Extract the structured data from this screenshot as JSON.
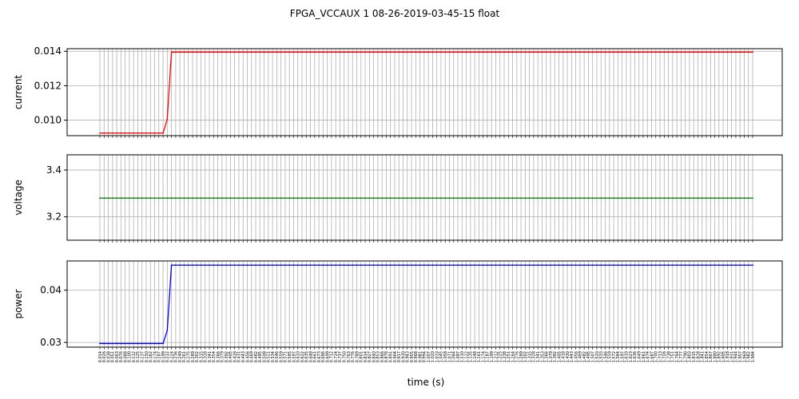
{
  "title": "FPGA_VCCAUX   1   08-26-2019-03-45-15   float",
  "chart_data": {
    "type": "line",
    "xlabel": "time (s)",
    "x": [
      "0.014",
      "0.026",
      "0.038",
      "0.051",
      "0.063",
      "0.076",
      "0.088",
      "0.100",
      "0.112",
      "0.125",
      "0.137",
      "0.150",
      "0.162",
      "0.174",
      "0.187",
      "0.199",
      "0.212",
      "0.224",
      "0.236",
      "0.249",
      "0.261",
      "0.275",
      "0.289",
      "0.302",
      "0.315",
      "0.328",
      "0.341",
      "0.354",
      "0.366",
      "0.379",
      "0.392",
      "0.405",
      "0.418",
      "0.431",
      "0.443",
      "0.456",
      "0.469",
      "0.482",
      "0.495",
      "0.508",
      "0.521",
      "0.534",
      "0.546",
      "0.559",
      "0.571",
      "0.585",
      "0.597",
      "0.610",
      "0.622",
      "0.635",
      "0.648",
      "0.661",
      "0.673",
      "0.686",
      "0.699",
      "0.712",
      "0.724",
      "0.737",
      "0.750",
      "0.763",
      "0.776",
      "0.789",
      "0.801",
      "0.814",
      "0.827",
      "0.840",
      "0.853",
      "0.866",
      "0.878",
      "0.891",
      "0.904",
      "0.917",
      "0.930",
      "0.943",
      "0.955",
      "0.968",
      "0.981",
      "0.994",
      "1.007",
      "1.020",
      "1.033",
      "1.045",
      "1.058",
      "1.071",
      "1.084",
      "1.097",
      "1.110",
      "1.122",
      "1.135",
      "1.148",
      "1.161",
      "1.174",
      "1.187",
      "1.199",
      "1.212",
      "1.225",
      "1.238",
      "1.251",
      "1.264",
      "1.276",
      "1.289",
      "1.302",
      "1.315",
      "1.328",
      "1.341",
      "1.353",
      "1.366",
      "1.379",
      "1.392",
      "1.405",
      "1.418",
      "1.430",
      "1.443",
      "1.456",
      "1.469",
      "1.482",
      "1.495",
      "1.507",
      "1.520",
      "1.533",
      "1.546",
      "1.559",
      "1.572",
      "1.584",
      "1.597",
      "1.610",
      "1.623",
      "1.636",
      "1.649",
      "1.661",
      "1.674",
      "1.687",
      "1.700",
      "1.713",
      "1.726",
      "1.738",
      "1.751",
      "1.764",
      "1.777",
      "1.790",
      "1.803",
      "1.815",
      "1.828",
      "1.841",
      "1.854",
      "1.867",
      "1.880",
      "1.892",
      "1.905",
      "1.918",
      "1.931",
      "1.944",
      "1.957",
      "1.969",
      "1.982",
      "1.994"
    ],
    "series": [
      {
        "name": "current",
        "color": "#ff0000",
        "ylabel": "current",
        "ylim": [
          0.0091,
          0.01415
        ],
        "yticks": [
          0.01,
          0.012,
          0.014
        ],
        "ytick_labels": [
          "0.010",
          "0.012",
          "0.014"
        ],
        "low": 0.00925,
        "mid": 0.01005,
        "high": 0.01395,
        "n_low": 16
      },
      {
        "name": "voltage",
        "color": "#008000",
        "ylabel": "voltage",
        "ylim": [
          3.1,
          3.465
        ],
        "yticks": [
          3.2,
          3.4
        ],
        "ytick_labels": [
          "3.2",
          "3.4"
        ],
        "low": 3.28,
        "mid": 3.28,
        "high": 3.28,
        "n_low": 16
      },
      {
        "name": "power",
        "color": "#0000ff",
        "ylabel": "power",
        "ylim": [
          0.0291,
          0.0456
        ],
        "yticks": [
          0.03,
          0.04
        ],
        "ytick_labels": [
          "0.03",
          "0.04"
        ],
        "low": 0.0298,
        "mid": 0.0323,
        "high": 0.0448,
        "n_low": 16
      }
    ],
    "grid": true
  }
}
